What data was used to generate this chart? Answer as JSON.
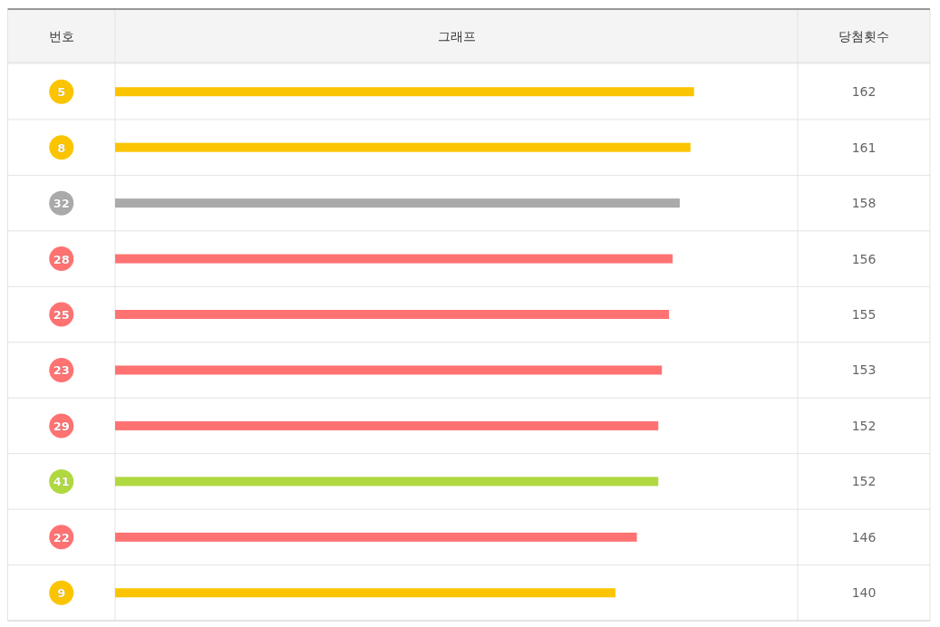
{
  "chart_data": {
    "type": "bar",
    "orientation": "horizontal",
    "ylabel": "번호",
    "xlabel": "그래프",
    "annotations": [
      "당첨횟수"
    ],
    "categories": [
      "5",
      "8",
      "32",
      "28",
      "25",
      "23",
      "29",
      "41",
      "22",
      "9"
    ],
    "values": [
      162,
      161,
      158,
      156,
      155,
      153,
      152,
      152,
      146,
      140
    ],
    "colors": [
      "#fbc400",
      "#fbc400",
      "#aaaaaa",
      "#ff7272",
      "#ff7272",
      "#ff7272",
      "#ff7272",
      "#b0d840",
      "#ff7272",
      "#fbc400"
    ],
    "xlim": [
      0,
      191
    ],
    "data_labels": true,
    "tick_labels": "y"
  }
}
